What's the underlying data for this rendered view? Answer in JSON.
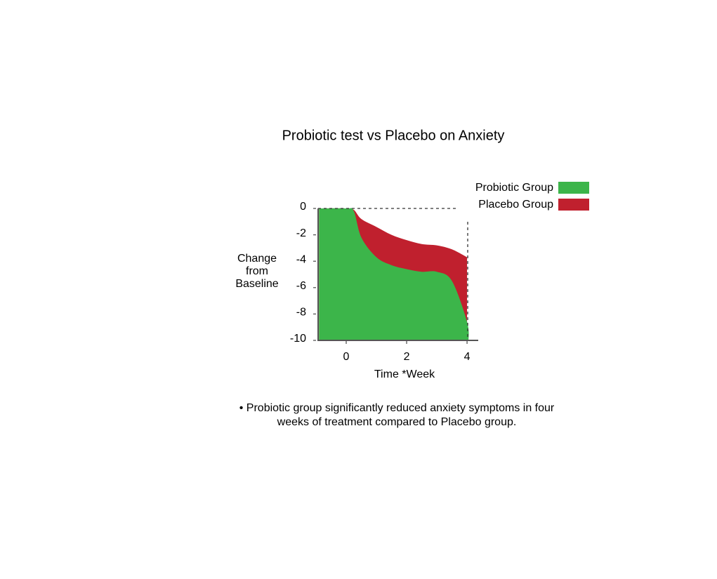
{
  "chart_data": {
    "type": "area",
    "title": "Probiotic test vs Placebo on Anxiety",
    "x_label": "Time *Week",
    "y_label": "Change from Baseline",
    "annotation": "• Probiotic group significantly reduced anxiety symptoms in four weeks of treatment compared to Placebo group.",
    "x": [
      -0.9,
      0,
      0.25,
      0.5,
      1,
      1.5,
      2,
      2.5,
      3,
      3.5,
      4,
      4.05
    ],
    "series": [
      {
        "name": "Placebo Group",
        "color": "#c0202e",
        "values": [
          0,
          0,
          -0.1,
          -0.8,
          -1.4,
          -2,
          -2.4,
          -2.7,
          -2.8,
          -3.1,
          -3.7,
          null
        ]
      },
      {
        "name": "Probiotic Group",
        "color": "#3cb54a",
        "values": [
          0,
          0,
          -0.2,
          -2.2,
          -3.7,
          -4.3,
          -4.6,
          -4.8,
          -4.8,
          -5.5,
          -8.6,
          -10
        ]
      }
    ],
    "legend_order": [
      1,
      0
    ],
    "legend": "top-right",
    "xlim": [
      -0.93,
      4.37
    ],
    "xticks": [
      0,
      2,
      4
    ],
    "ylim": [
      -10,
      0
    ],
    "yticks": [
      0,
      -2,
      -4,
      -6,
      -8,
      -10
    ]
  }
}
